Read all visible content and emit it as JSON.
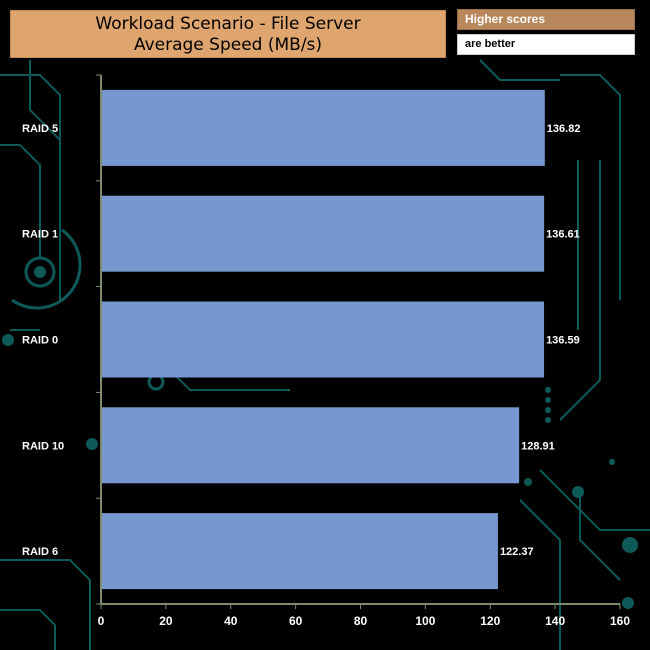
{
  "header": {
    "title_line1": "Workload Scenario - File Server",
    "title_line2": "Average Speed (MB/s)",
    "legend_high": "Higher scores",
    "legend_low": "are better"
  },
  "colors": {
    "bar": "#7697cf",
    "title_bg": "#dfa56f",
    "legend_high_bg": "#b9875c",
    "axis": "#7e8c6c",
    "circuit": "#0e5a58",
    "text": "#ffffff"
  },
  "chart_data": {
    "type": "bar",
    "orientation": "horizontal",
    "title": "Workload Scenario - File Server Average Speed (MB/s)",
    "categories": [
      "RAID 5",
      "RAID 1",
      "RAID 0",
      "RAID 10",
      "RAID 6"
    ],
    "values": [
      136.82,
      136.61,
      136.59,
      128.91,
      122.37
    ],
    "value_labels": [
      "136.82",
      "136.61",
      "136.59",
      "128.91",
      "122.37"
    ],
    "xlim": [
      0,
      160
    ],
    "xticks": [
      0,
      20,
      40,
      60,
      80,
      100,
      120,
      140,
      160
    ],
    "grid": false,
    "legend": "top-right"
  }
}
